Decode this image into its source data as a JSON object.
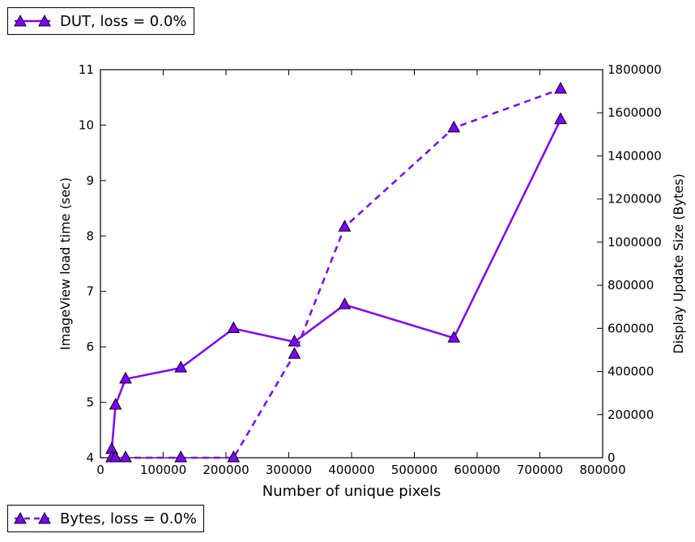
{
  "chart_data": {
    "type": "line",
    "xlabel": "Number of unique pixels",
    "ylabel": "ImageView load time (sec)",
    "y2label": "Display Update Size (Bytes)",
    "xlim": [
      0,
      800000
    ],
    "ylim": [
      4,
      11
    ],
    "y2lim": [
      0,
      1800000
    ],
    "xticks": [
      "0",
      "100000",
      "200000",
      "300000",
      "400000",
      "500000",
      "600000",
      "700000",
      "800000"
    ],
    "yticks": [
      "4",
      "5",
      "6",
      "7",
      "8",
      "9",
      "10",
      "11"
    ],
    "y2ticks": [
      "0",
      "200000",
      "400000",
      "600000",
      "800000",
      "1000000",
      "1200000",
      "1400000",
      "1600000",
      "1800000"
    ],
    "grid": false,
    "color": "#8000FF",
    "series": [
      {
        "name": "DUT, loss = 0.0%",
        "axis": "left",
        "style": "solid",
        "marker": "triangle",
        "x": [
          18000,
          24000,
          40000,
          128000,
          212000,
          309000,
          389000,
          563000,
          733000
        ],
        "y": [
          4.15,
          4.95,
          5.42,
          5.62,
          6.33,
          6.09,
          6.76,
          6.16,
          10.1
        ]
      },
      {
        "name": "Bytes, loss = 0.0%",
        "axis": "right",
        "style": "dashed",
        "marker": "triangle",
        "x": [
          18000,
          24000,
          40000,
          128000,
          212000,
          309000,
          389000,
          563000,
          733000
        ],
        "y": [
          0,
          0,
          0,
          0,
          0,
          480000,
          1070000,
          1530000,
          1710000
        ]
      }
    ]
  },
  "legend": {
    "top_label": "DUT, loss = 0.0%",
    "bottom_label": "Bytes, loss = 0.0%"
  }
}
